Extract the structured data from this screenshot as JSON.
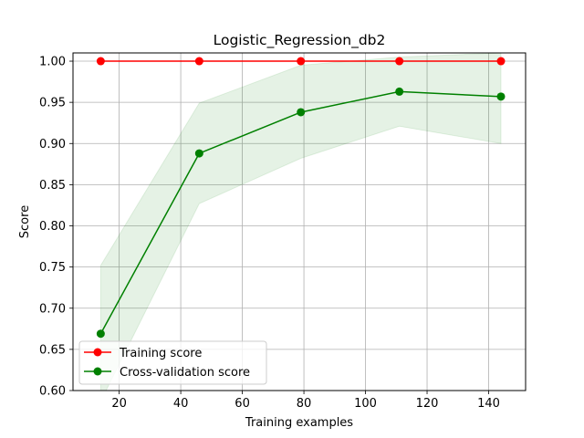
{
  "chart_data": {
    "type": "line",
    "title": "Logistic_Regression_db2",
    "xlabel": "Training examples",
    "ylabel": "Score",
    "xlim": [
      5,
      152
    ],
    "ylim": [
      0.6,
      1.01
    ],
    "xticks": [
      20,
      40,
      60,
      80,
      100,
      120,
      140
    ],
    "xtick_labels": [
      "20",
      "40",
      "60",
      "80",
      "100",
      "120",
      "140"
    ],
    "yticks": [
      0.6,
      0.65,
      0.7,
      0.75,
      0.8,
      0.85,
      0.9,
      0.95,
      1.0
    ],
    "ytick_labels": [
      "0.60",
      "0.65",
      "0.70",
      "0.75",
      "0.80",
      "0.85",
      "0.90",
      "0.95",
      "1.00"
    ],
    "grid": true,
    "legend_position": "lower-left",
    "x": [
      14,
      46,
      79,
      111,
      144
    ],
    "series": [
      {
        "name": "Training score",
        "color": "#ff0000",
        "marker": "circle",
        "values": [
          1.0,
          1.0,
          1.0,
          1.0,
          1.0
        ],
        "band_lower": [
          1.0,
          1.0,
          1.0,
          1.0,
          1.0
        ],
        "band_upper": [
          1.0,
          1.0,
          1.0,
          1.0,
          1.0
        ],
        "band_color": "#ff0000"
      },
      {
        "name": "Cross-validation score",
        "color": "#008000",
        "marker": "circle",
        "values": [
          0.669,
          0.888,
          0.938,
          0.963,
          0.957
        ],
        "band_lower": [
          0.587,
          0.827,
          0.882,
          0.921,
          0.9
        ],
        "band_upper": [
          0.752,
          0.949,
          0.995,
          1.005,
          1.01
        ],
        "band_color": "#008000"
      }
    ]
  }
}
